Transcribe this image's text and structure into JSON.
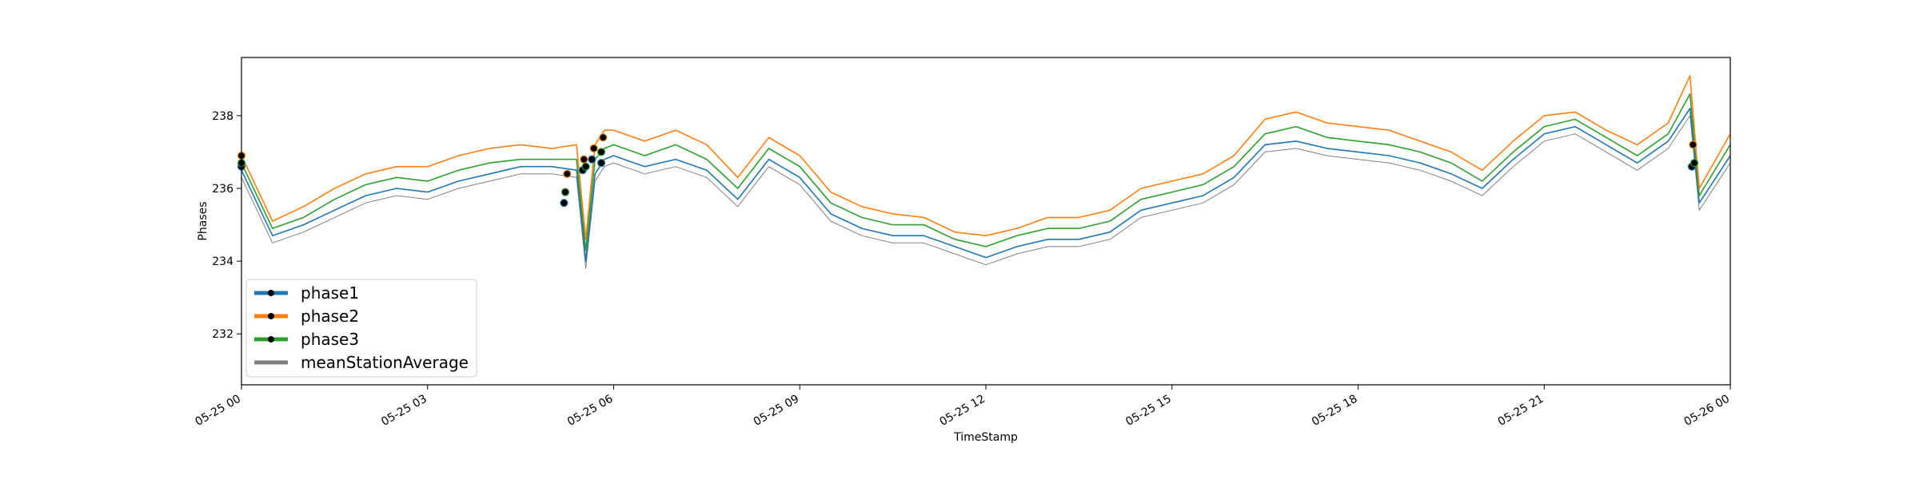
{
  "chart_data": {
    "type": "line",
    "title": "",
    "xlabel": "TimeStamp",
    "ylabel": "Phases",
    "xlim": [
      "2021-05-25 00:00",
      "2021-05-26 00:00"
    ],
    "ylim": [
      230.6,
      239.6
    ],
    "x_tick_labels": [
      "05-25 00",
      "05-25 03",
      "05-25 06",
      "05-25 09",
      "05-25 12",
      "05-25 15",
      "05-25 18",
      "05-25 21",
      "05-26 00"
    ],
    "x_tick_hours": [
      0,
      3,
      6,
      9,
      12,
      15,
      18,
      21,
      24
    ],
    "y_ticks": [
      232,
      234,
      236,
      238
    ],
    "y_tick_labels": [
      "232",
      "234",
      "236",
      "238"
    ],
    "grid": false,
    "legend_position": "lower-left",
    "series": [
      {
        "name": "phase1",
        "color": "#1f77b4",
        "x_hours": [
          0,
          0.5,
          1,
          1.5,
          2,
          2.5,
          3,
          3.5,
          4,
          4.5,
          5,
          5.4,
          5.55,
          5.7,
          5.85,
          6,
          6.5,
          7,
          7.5,
          8,
          8.5,
          9,
          9.5,
          10,
          10.5,
          11,
          11.5,
          12,
          12.5,
          13,
          13.5,
          14,
          14.5,
          15,
          15.5,
          16,
          16.5,
          17,
          17.5,
          18,
          18.5,
          19,
          19.5,
          20,
          20.5,
          21,
          21.5,
          22,
          22.5,
          23,
          23.35,
          23.5,
          24
        ],
        "values": [
          236.5,
          234.7,
          235.0,
          235.4,
          235.8,
          236.0,
          235.9,
          236.2,
          236.4,
          236.6,
          236.6,
          236.5,
          234.0,
          236.4,
          236.8,
          236.9,
          236.6,
          236.8,
          236.5,
          235.7,
          236.8,
          236.3,
          235.3,
          234.9,
          234.7,
          234.7,
          234.4,
          234.1,
          234.4,
          234.6,
          234.6,
          234.8,
          235.4,
          235.6,
          235.8,
          236.3,
          237.2,
          237.3,
          237.1,
          237.0,
          236.9,
          236.7,
          236.4,
          236.0,
          236.8,
          237.5,
          237.7,
          237.2,
          236.7,
          237.3,
          238.2,
          235.6,
          236.9
        ]
      },
      {
        "name": "phase2",
        "color": "#ff7f0e",
        "x_hours": [
          0,
          0.5,
          1,
          1.5,
          2,
          2.5,
          3,
          3.5,
          4,
          4.5,
          5,
          5.4,
          5.55,
          5.7,
          5.85,
          6,
          6.5,
          7,
          7.5,
          8,
          8.5,
          9,
          9.5,
          10,
          10.5,
          11,
          11.5,
          12,
          12.5,
          13,
          13.5,
          14,
          14.5,
          15,
          15.5,
          16,
          16.5,
          17,
          17.5,
          18,
          18.5,
          19,
          19.5,
          20,
          20.5,
          21,
          21.5,
          22,
          22.5,
          23,
          23.35,
          23.5,
          24
        ],
        "values": [
          236.9,
          235.1,
          235.5,
          236.0,
          236.4,
          236.6,
          236.6,
          236.9,
          237.1,
          237.2,
          237.1,
          237.2,
          234.6,
          237.2,
          237.6,
          237.6,
          237.3,
          237.6,
          237.2,
          236.3,
          237.4,
          236.9,
          235.9,
          235.5,
          235.3,
          235.2,
          234.8,
          234.7,
          234.9,
          235.2,
          235.2,
          235.4,
          236.0,
          236.2,
          236.4,
          236.9,
          237.9,
          238.1,
          237.8,
          237.7,
          237.6,
          237.3,
          237.0,
          236.5,
          237.3,
          238.0,
          238.1,
          237.6,
          237.2,
          237.8,
          239.1,
          236.0,
          237.5
        ]
      },
      {
        "name": "phase3",
        "color": "#2ca02c",
        "x_hours": [
          0,
          0.5,
          1,
          1.5,
          2,
          2.5,
          3,
          3.5,
          4,
          4.5,
          5,
          5.4,
          5.55,
          5.7,
          5.85,
          6,
          6.5,
          7,
          7.5,
          8,
          8.5,
          9,
          9.5,
          10,
          10.5,
          11,
          11.5,
          12,
          12.5,
          13,
          13.5,
          14,
          14.5,
          15,
          15.5,
          16,
          16.5,
          17,
          17.5,
          18,
          18.5,
          19,
          19.5,
          20,
          20.5,
          21,
          21.5,
          22,
          22.5,
          23,
          23.35,
          23.5,
          24
        ],
        "values": [
          236.7,
          234.9,
          235.2,
          235.7,
          236.1,
          236.3,
          236.2,
          236.5,
          236.7,
          236.8,
          236.8,
          236.8,
          234.3,
          236.8,
          237.1,
          237.2,
          236.9,
          237.2,
          236.8,
          236.0,
          237.1,
          236.6,
          235.6,
          235.2,
          235.0,
          235.0,
          234.6,
          234.4,
          234.7,
          234.9,
          234.9,
          235.1,
          235.7,
          235.9,
          236.1,
          236.6,
          237.5,
          237.7,
          237.4,
          237.3,
          237.2,
          237.0,
          236.7,
          236.2,
          237.0,
          237.7,
          237.9,
          237.4,
          236.9,
          237.5,
          238.6,
          235.8,
          237.2
        ]
      },
      {
        "name": "meanStationAverage",
        "color": "#808080",
        "x_hours": [
          0,
          0.5,
          1,
          1.5,
          2,
          2.5,
          3,
          3.5,
          4,
          4.5,
          5,
          5.4,
          5.55,
          5.7,
          5.85,
          6,
          6.5,
          7,
          7.5,
          8,
          8.5,
          9,
          9.5,
          10,
          10.5,
          11,
          11.5,
          12,
          12.5,
          13,
          13.5,
          14,
          14.5,
          15,
          15.5,
          16,
          16.5,
          17,
          17.5,
          18,
          18.5,
          19,
          19.5,
          20,
          20.5,
          21,
          21.5,
          22,
          22.5,
          23,
          23.35,
          23.5,
          24
        ],
        "values": [
          236.3,
          234.5,
          234.8,
          235.2,
          235.6,
          235.8,
          235.7,
          236.0,
          236.2,
          236.4,
          236.4,
          236.3,
          233.8,
          236.2,
          236.6,
          236.7,
          236.4,
          236.6,
          236.3,
          235.5,
          236.6,
          236.1,
          235.1,
          234.7,
          234.5,
          234.5,
          234.2,
          233.9,
          234.2,
          234.4,
          234.4,
          234.6,
          235.2,
          235.4,
          235.6,
          236.1,
          237.0,
          237.1,
          236.9,
          236.8,
          236.7,
          236.5,
          236.2,
          235.8,
          236.6,
          237.3,
          237.5,
          237.0,
          236.5,
          237.1,
          238.0,
          235.4,
          236.7
        ]
      }
    ],
    "markers": [
      {
        "series": "phase1",
        "x_hour": 0.0,
        "y": 236.6
      },
      {
        "series": "phase2",
        "x_hour": 0.0,
        "y": 236.9
      },
      {
        "series": "phase3",
        "x_hour": 0.0,
        "y": 236.7
      },
      {
        "series": "phase1",
        "x_hour": 5.2,
        "y": 235.6
      },
      {
        "series": "phase3",
        "x_hour": 5.22,
        "y": 235.9
      },
      {
        "series": "phase2",
        "x_hour": 5.25,
        "y": 236.4
      },
      {
        "series": "phase1",
        "x_hour": 5.5,
        "y": 236.5
      },
      {
        "series": "phase2",
        "x_hour": 5.52,
        "y": 236.8
      },
      {
        "series": "phase3",
        "x_hour": 5.55,
        "y": 236.6
      },
      {
        "series": "phase1",
        "x_hour": 5.65,
        "y": 236.8
      },
      {
        "series": "phase2",
        "x_hour": 5.68,
        "y": 237.1
      },
      {
        "series": "phase3",
        "x_hour": 5.8,
        "y": 237.0
      },
      {
        "series": "phase2",
        "x_hour": 5.83,
        "y": 237.4
      },
      {
        "series": "phase1",
        "x_hour": 5.8,
        "y": 236.7
      },
      {
        "series": "phase2",
        "x_hour": 23.4,
        "y": 237.2
      },
      {
        "series": "phase1",
        "x_hour": 23.38,
        "y": 236.6
      },
      {
        "series": "phase3",
        "x_hour": 23.42,
        "y": 236.7
      }
    ]
  }
}
